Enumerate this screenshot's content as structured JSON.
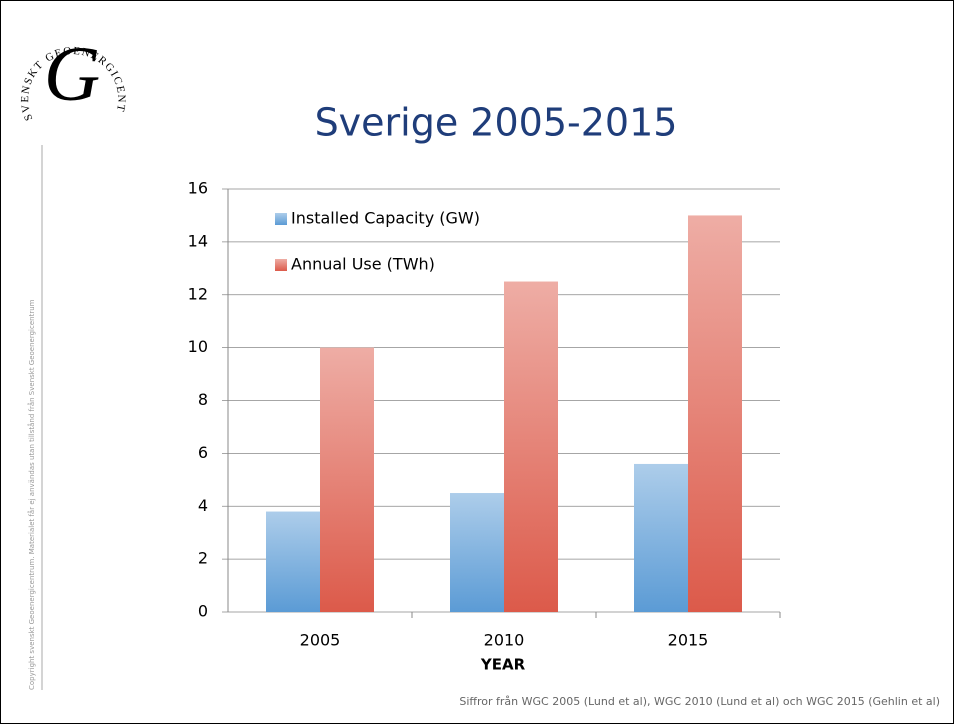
{
  "logo_text": "SVENSKT GEOENERGICENTRUM",
  "copyright": "Copyright svenskt Geoenergicentrum. Materialet får ej användas utan tillstånd från Svenskt Geoenergicentrum",
  "source": "Siffror från WGC 2005 (Lund et al), WGC 2010 (Lund et al) och WGC 2015 (Gehlin et al)",
  "chart_data": {
    "type": "bar",
    "title": "Sverige 2005-2015",
    "x_label": "YEAR",
    "categories": [
      "2005",
      "2010",
      "2015"
    ],
    "series": [
      {
        "name": "Installed Capacity (GW)",
        "color": "#5b9bd5",
        "values": [
          3.8,
          4.5,
          5.6
        ]
      },
      {
        "name": "Annual Use (TWh)",
        "color": "#dc5a4a",
        "values": [
          10,
          12.5,
          15
        ]
      }
    ],
    "ylim": [
      0,
      16
    ],
    "yticks": [
      0,
      2,
      4,
      6,
      8,
      10,
      12,
      14,
      16
    ],
    "grid": true,
    "legend": "top-left"
  }
}
